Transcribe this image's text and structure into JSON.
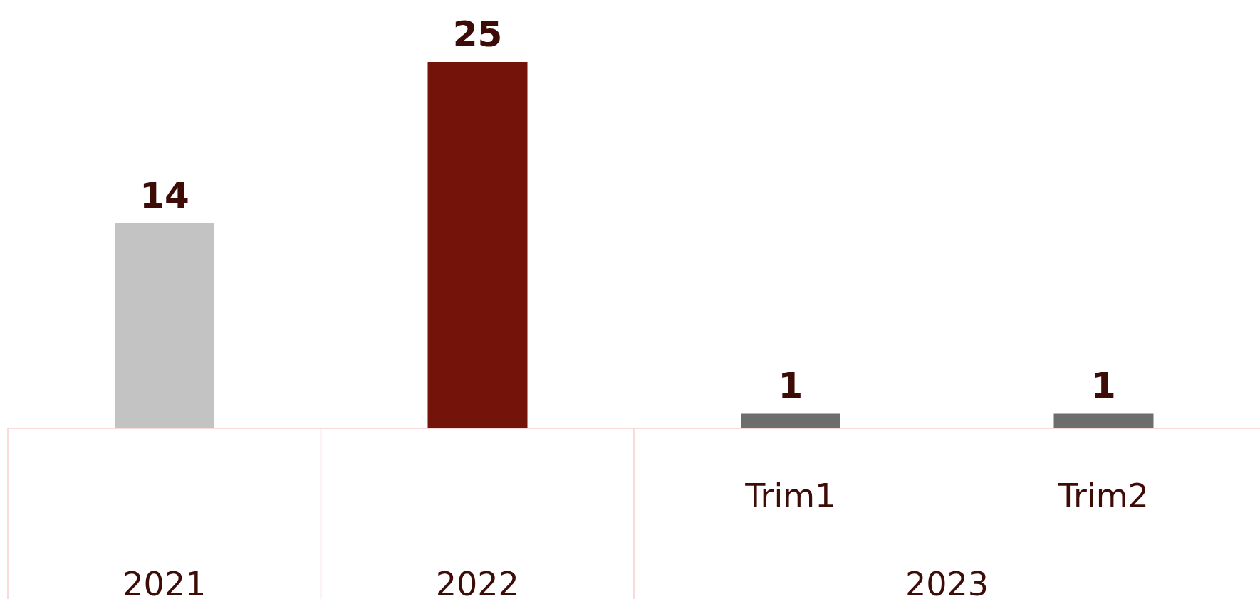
{
  "chart_data": {
    "type": "bar",
    "categories": [
      "2021",
      "2022",
      "Trim1",
      "Trim2"
    ],
    "values": [
      14,
      25,
      1,
      1
    ],
    "colors": [
      "#c3c3c3",
      "#73130a",
      "#6d6d6d",
      "#6d6d6d"
    ],
    "data_labels": true,
    "annotations": [
      "2023"
    ]
  }
}
